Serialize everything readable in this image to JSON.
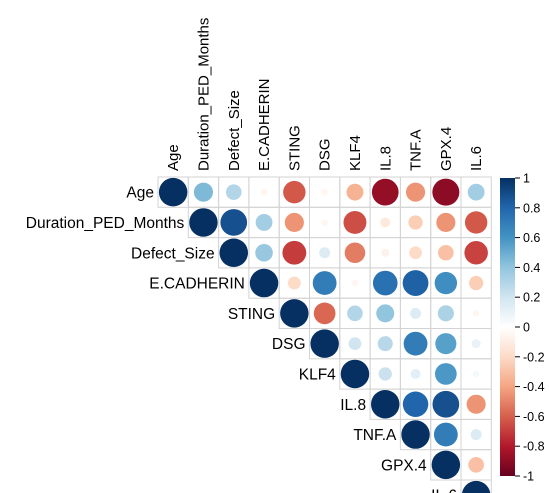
{
  "chart_data": {
    "type": "heatmap",
    "variables": [
      "Age",
      "Duration_PED_Months",
      "Defect_Size",
      "E.CADHERIN",
      "STING",
      "DSG",
      "KLF4",
      "IL.8",
      "TNF.A",
      "GPX.4",
      "IL.6"
    ],
    "matrix": [
      [
        1.0,
        0.45,
        0.3,
        -0.05,
        -0.62,
        -0.05,
        -0.35,
        -0.88,
        -0.45,
        -0.9,
        0.35
      ],
      [
        null,
        1.0,
        0.88,
        0.35,
        -0.45,
        -0.05,
        -0.65,
        -0.12,
        -0.25,
        -0.45,
        -0.62
      ],
      [
        null,
        null,
        1.0,
        0.38,
        -0.7,
        0.15,
        -0.52,
        -0.08,
        -0.2,
        -0.3,
        -0.68
      ],
      [
        null,
        null,
        null,
        1.0,
        -0.2,
        0.7,
        -0.05,
        0.75,
        0.82,
        0.62,
        -0.25
      ],
      [
        null,
        null,
        null,
        null,
        1.0,
        -0.58,
        0.3,
        0.4,
        0.15,
        0.32,
        -0.05
      ],
      [
        null,
        null,
        null,
        null,
        null,
        1.0,
        0.2,
        0.28,
        0.7,
        0.55,
        0.1
      ],
      [
        null,
        null,
        null,
        null,
        null,
        null,
        1.0,
        0.22,
        0.12,
        0.58,
        0.05
      ],
      [
        null,
        null,
        null,
        null,
        null,
        null,
        null,
        1.0,
        0.8,
        0.88,
        -0.45
      ],
      [
        null,
        null,
        null,
        null,
        null,
        null,
        null,
        null,
        1.0,
        0.7,
        0.15
      ],
      [
        null,
        null,
        null,
        null,
        null,
        null,
        null,
        null,
        null,
        1.0,
        -0.3
      ],
      [
        null,
        null,
        null,
        null,
        null,
        null,
        null,
        null,
        null,
        null,
        1.0
      ]
    ],
    "color_scale": {
      "range": [
        -1,
        1
      ],
      "ticks": [
        "1",
        "0.8",
        "0.6",
        "0.4",
        "0.2",
        "0",
        "-0.2",
        "-0.4",
        "-0.6",
        "-0.8",
        "-1"
      ],
      "colors": [
        "#67001f",
        "#b2182b",
        "#d6604d",
        "#f4a582",
        "#fddbc7",
        "#ffffff",
        "#d1e5f0",
        "#92c5de",
        "#4393c3",
        "#2166ac",
        "#053061"
      ],
      "placement": "right"
    },
    "grid": true,
    "layout": "upper-triangle",
    "method": "circle"
  }
}
